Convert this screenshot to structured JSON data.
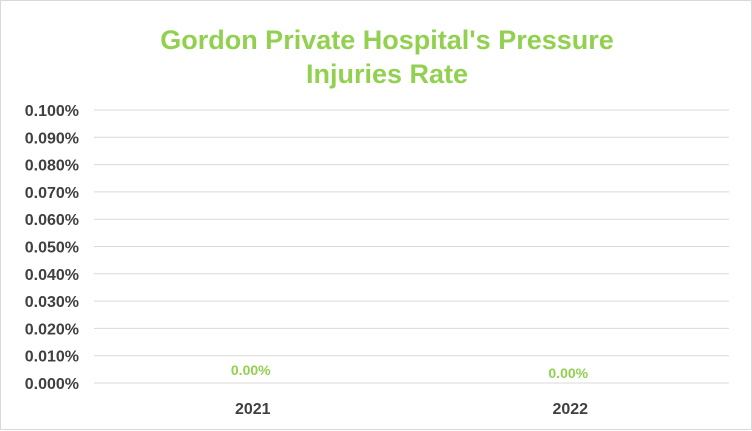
{
  "chart_data": {
    "type": "line",
    "title_lines": [
      "Gordon Private Hospital's Pressure",
      "Injuries Rate"
    ],
    "categories": [
      "2021",
      "2022"
    ],
    "series": [
      {
        "values": [
          0.0,
          0.0
        ]
      }
    ],
    "data_labels": [
      "0.00%",
      "0.00%"
    ],
    "ylim": [
      0,
      0.1
    ],
    "yticks": [
      "0.000%",
      "0.010%",
      "0.020%",
      "0.030%",
      "0.040%",
      "0.050%",
      "0.060%",
      "0.070%",
      "0.080%",
      "0.090%",
      "0.100%"
    ],
    "grid": true,
    "legend": "none",
    "colors": {
      "title": "#92d050",
      "data_label": "#92d050",
      "gridline": "#d9d9d9",
      "axis_text": "#404040"
    }
  }
}
